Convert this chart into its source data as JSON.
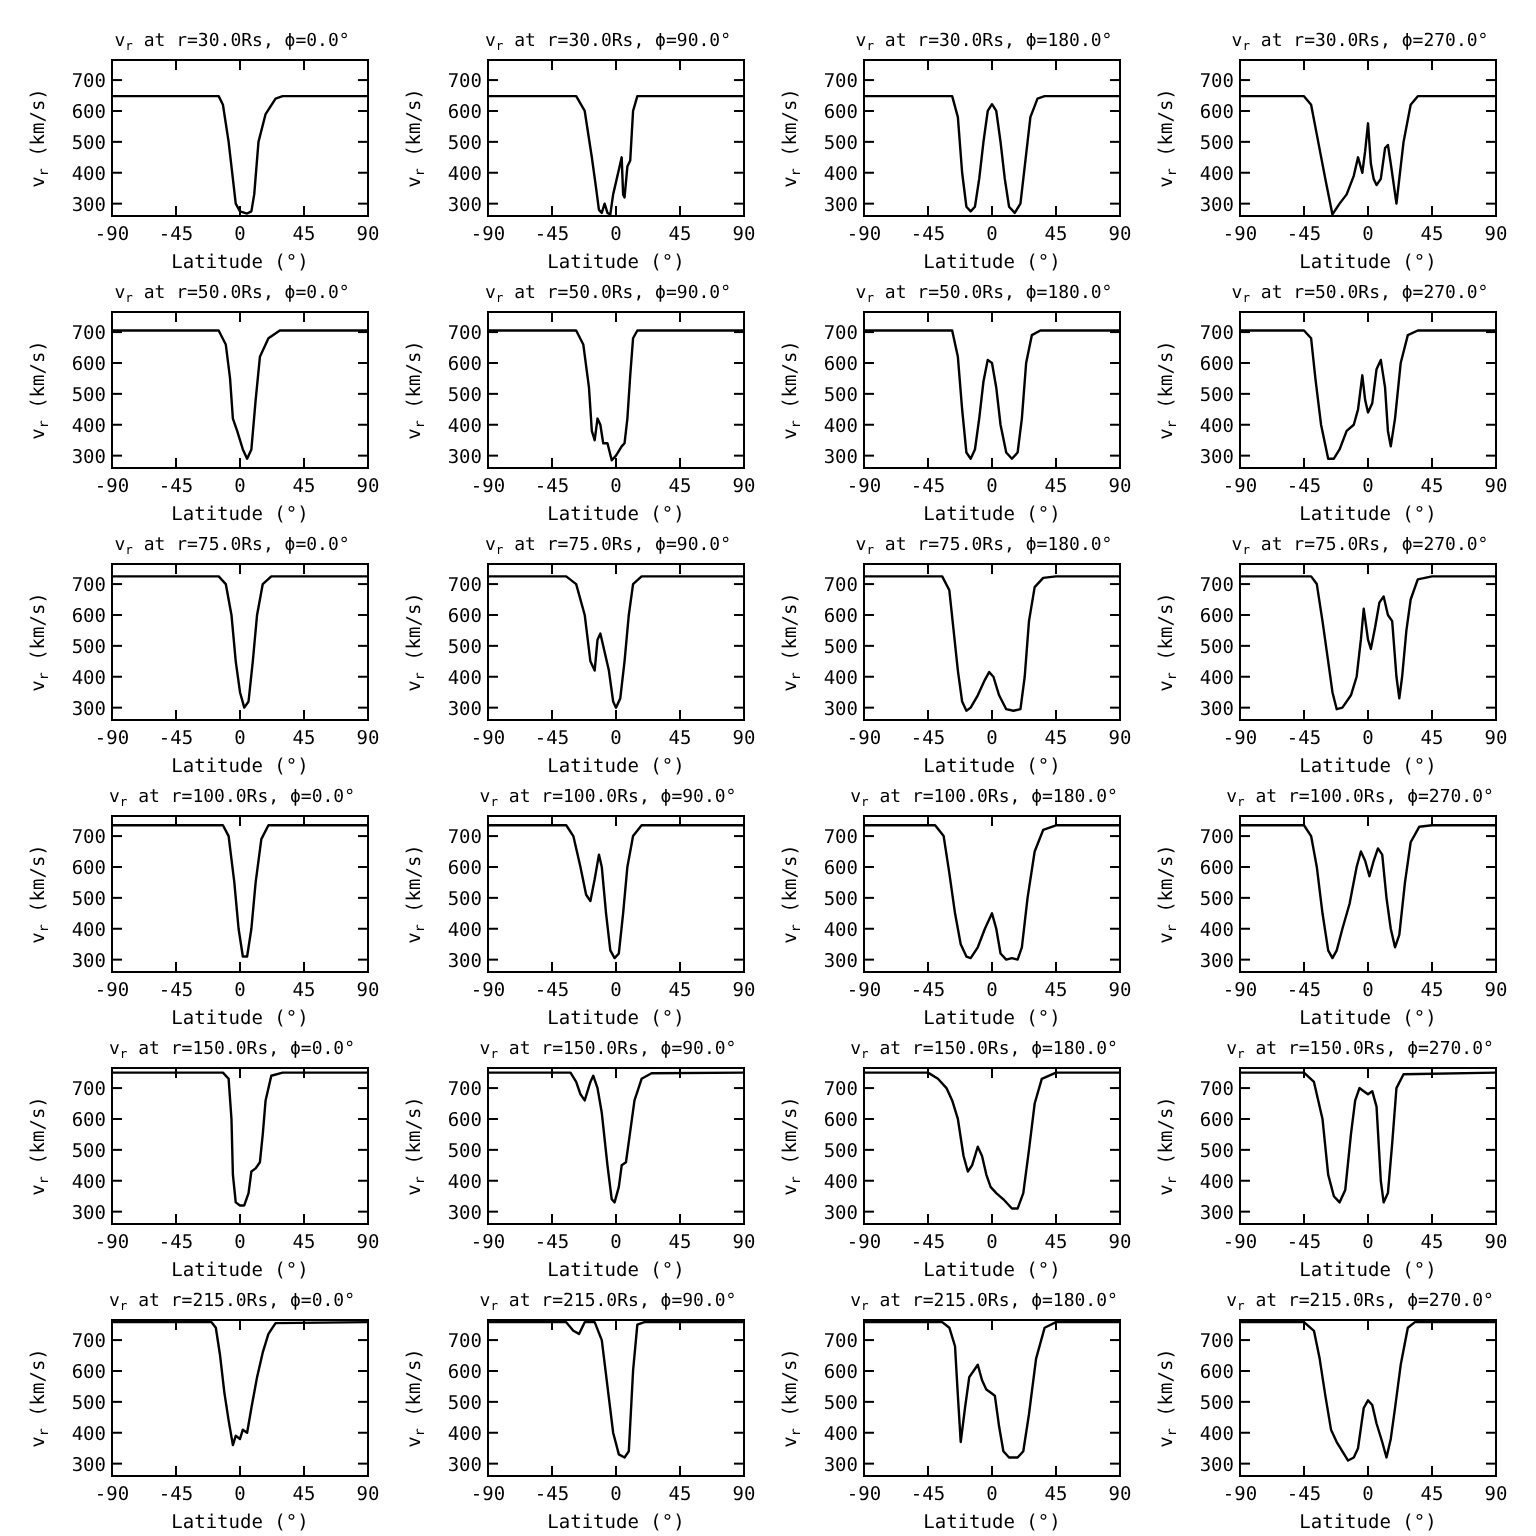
{
  "chart_data": [
    {
      "type": "line",
      "title": "v$_{r}$ at r=30.0Rs, ϕ=0.0°",
      "xlabel": "Latitude (°)",
      "ylabel": "v$_{r}$ (km/s)",
      "color": "#000000",
      "xlim": [
        -90,
        90
      ],
      "ylim": [
        260,
        765
      ],
      "xticks": [
        -90,
        -45,
        0,
        45,
        90
      ],
      "yticks": [
        300,
        400,
        500,
        600,
        700
      ],
      "x": [
        -90,
        -15,
        -12,
        -8,
        -5,
        -3,
        0,
        5,
        8,
        10,
        13,
        18,
        25,
        30,
        90
      ],
      "values": [
        648,
        648,
        620,
        500,
        380,
        300,
        275,
        268,
        275,
        330,
        500,
        590,
        640,
        648,
        648
      ]
    },
    {
      "type": "line",
      "title": "v$_{r}$ at r=30.0Rs, ϕ=90.0°",
      "xlabel": "Latitude (°)",
      "ylabel": "v$_{r}$ (km/s)",
      "color": "#000000",
      "xlim": [
        -90,
        90
      ],
      "ylim": [
        260,
        765
      ],
      "xticks": [
        -90,
        -45,
        0,
        45,
        90
      ],
      "yticks": [
        300,
        400,
        500,
        600,
        700
      ],
      "x": [
        -90,
        -28,
        -22,
        -17,
        -14,
        -12,
        -10,
        -8,
        -6,
        -4,
        -2,
        2,
        4,
        5,
        6,
        8,
        10,
        12,
        15,
        90
      ],
      "values": [
        648,
        648,
        600,
        450,
        350,
        280,
        270,
        300,
        270,
        265,
        330,
        410,
        450,
        330,
        320,
        420,
        440,
        600,
        648,
        648
      ]
    },
    {
      "type": "line",
      "title": "v$_{r}$ at r=30.0Rs, ϕ=180.0°",
      "xlabel": "Latitude (°)",
      "ylabel": "v$_{r}$ (km/s)",
      "color": "#000000",
      "xlim": [
        -90,
        90
      ],
      "ylim": [
        260,
        765
      ],
      "xticks": [
        -90,
        -45,
        0,
        45,
        90
      ],
      "yticks": [
        300,
        400,
        500,
        600,
        700
      ],
      "x": [
        -90,
        -28,
        -24,
        -21,
        -18,
        -15,
        -12,
        -9,
        -6,
        -3,
        0,
        3,
        6,
        9,
        12,
        16,
        20,
        23,
        27,
        32,
        37,
        90
      ],
      "values": [
        648,
        648,
        580,
        400,
        290,
        275,
        290,
        380,
        500,
        600,
        622,
        600,
        500,
        380,
        290,
        270,
        300,
        420,
        580,
        640,
        648,
        648
      ]
    },
    {
      "type": "line",
      "title": "v$_{r}$ at r=30.0Rs, ϕ=270.0°",
      "xlabel": "Latitude (°)",
      "ylabel": "v$_{r}$ (km/s)",
      "color": "#000000",
      "xlim": [
        -90,
        90
      ],
      "ylim": [
        260,
        765
      ],
      "xticks": [
        -90,
        -45,
        0,
        45,
        90
      ],
      "yticks": [
        300,
        400,
        500,
        600,
        700
      ],
      "x": [
        -90,
        -45,
        -40,
        -35,
        -30,
        -25,
        -20,
        -15,
        -10,
        -7,
        -4,
        -2,
        0,
        2,
        4,
        6,
        9,
        12,
        14,
        16,
        20,
        22,
        25,
        30,
        35,
        90
      ],
      "values": [
        648,
        648,
        620,
        500,
        380,
        265,
        300,
        330,
        390,
        450,
        400,
        470,
        560,
        430,
        380,
        360,
        380,
        480,
        490,
        430,
        300,
        380,
        500,
        620,
        648,
        648
      ]
    },
    {
      "type": "line",
      "title": "v$_{r}$ at r=50.0Rs, ϕ=0.0°",
      "xlabel": "Latitude (°)",
      "ylabel": "v$_{r}$ (km/s)",
      "color": "#000000",
      "xlim": [
        -90,
        90
      ],
      "ylim": [
        260,
        765
      ],
      "xticks": [
        -90,
        -45,
        0,
        45,
        90
      ],
      "yticks": [
        300,
        400,
        500,
        600,
        700
      ],
      "x": [
        -90,
        -15,
        -10,
        -7,
        -5,
        -2,
        2,
        5,
        8,
        11,
        14,
        20,
        28,
        90
      ],
      "values": [
        705,
        705,
        660,
        550,
        420,
        380,
        320,
        290,
        320,
        480,
        620,
        680,
        705,
        705
      ]
    },
    {
      "type": "line",
      "title": "v$_{r}$ at r=50.0Rs, ϕ=90.0°",
      "xlabel": "Latitude (°)",
      "ylabel": "v$_{r}$ (km/s)",
      "color": "#000000",
      "xlim": [
        -90,
        90
      ],
      "ylim": [
        260,
        765
      ],
      "xticks": [
        -90,
        -45,
        0,
        45,
        90
      ],
      "yticks": [
        300,
        400,
        500,
        600,
        700
      ],
      "x": [
        -90,
        -28,
        -23,
        -19,
        -17,
        -15,
        -13,
        -11,
        -9,
        -6,
        -3,
        0,
        4,
        6,
        8,
        10,
        12,
        15,
        90
      ],
      "values": [
        705,
        705,
        660,
        520,
        380,
        350,
        420,
        400,
        340,
        340,
        285,
        300,
        330,
        340,
        420,
        560,
        680,
        705,
        705
      ]
    },
    {
      "type": "line",
      "title": "v$_{r}$ at r=50.0Rs, ϕ=180.0°",
      "xlabel": "Latitude (°)",
      "ylabel": "v$_{r}$ (km/s)",
      "color": "#000000",
      "xlim": [
        -90,
        90
      ],
      "ylim": [
        260,
        765
      ],
      "xticks": [
        -90,
        -45,
        0,
        45,
        90
      ],
      "yticks": [
        300,
        400,
        500,
        600,
        700
      ],
      "x": [
        -90,
        -28,
        -24,
        -21,
        -18,
        -15,
        -12,
        -9,
        -6,
        -3,
        0,
        3,
        6,
        10,
        14,
        18,
        21,
        24,
        28,
        34,
        90
      ],
      "values": [
        705,
        705,
        620,
        450,
        310,
        290,
        320,
        420,
        540,
        610,
        600,
        520,
        400,
        310,
        290,
        310,
        420,
        600,
        690,
        705,
        705
      ]
    },
    {
      "type": "line",
      "title": "v$_{r}$ at r=50.0Rs, ϕ=270.0°",
      "xlabel": "Latitude (°)",
      "ylabel": "v$_{r}$ (km/s)",
      "color": "#000000",
      "xlim": [
        -90,
        90
      ],
      "ylim": [
        260,
        765
      ],
      "xticks": [
        -90,
        -45,
        0,
        45,
        90
      ],
      "yticks": [
        300,
        400,
        500,
        600,
        700
      ],
      "x": [
        -90,
        -45,
        -40,
        -37,
        -33,
        -28,
        -24,
        -20,
        -15,
        -10,
        -7,
        -4,
        -2,
        0,
        3,
        6,
        9,
        12,
        14,
        16,
        19,
        23,
        28,
        35,
        90
      ],
      "values": [
        705,
        705,
        680,
        550,
        400,
        290,
        290,
        320,
        380,
        400,
        450,
        560,
        480,
        440,
        470,
        580,
        610,
        520,
        380,
        330,
        420,
        600,
        690,
        705,
        705
      ]
    },
    {
      "type": "line",
      "title": "v$_{r}$ at r=75.0Rs, ϕ=0.0°",
      "xlabel": "Latitude (°)",
      "ylabel": "v$_{r}$ (km/s)",
      "color": "#000000",
      "xlim": [
        -90,
        90
      ],
      "ylim": [
        260,
        765
      ],
      "xticks": [
        -90,
        -45,
        0,
        45,
        90
      ],
      "yticks": [
        300,
        400,
        500,
        600,
        700
      ],
      "x": [
        -90,
        -15,
        -10,
        -6,
        -3,
        0,
        3,
        6,
        9,
        12,
        16,
        22,
        90
      ],
      "values": [
        725,
        725,
        700,
        600,
        450,
        350,
        300,
        320,
        450,
        600,
        700,
        725,
        725
      ]
    },
    {
      "type": "line",
      "title": "v$_{r}$ at r=75.0Rs, ϕ=90.0°",
      "xlabel": "Latitude (°)",
      "ylabel": "v$_{r}$ (km/s)",
      "color": "#000000",
      "xlim": [
        -90,
        90
      ],
      "ylim": [
        260,
        765
      ],
      "xticks": [
        -90,
        -45,
        0,
        45,
        90
      ],
      "yticks": [
        300,
        400,
        500,
        600,
        700
      ],
      "x": [
        -90,
        -35,
        -28,
        -22,
        -18,
        -15,
        -13,
        -11,
        -8,
        -5,
        -2,
        0,
        3,
        6,
        9,
        12,
        18,
        90
      ],
      "values": [
        725,
        725,
        700,
        600,
        450,
        420,
        520,
        540,
        480,
        420,
        320,
        300,
        330,
        450,
        600,
        700,
        725,
        725
      ]
    },
    {
      "type": "line",
      "title": "v$_{r}$ at r=75.0Rs, ϕ=180.0°",
      "xlabel": "Latitude (°)",
      "ylabel": "v$_{r}$ (km/s)",
      "color": "#000000",
      "xlim": [
        -90,
        90
      ],
      "ylim": [
        260,
        765
      ],
      "xticks": [
        -90,
        -45,
        0,
        45,
        90
      ],
      "yticks": [
        300,
        400,
        500,
        600,
        700
      ],
      "x": [
        -90,
        -35,
        -30,
        -27,
        -24,
        -21,
        -18,
        -15,
        -10,
        -5,
        -2,
        1,
        5,
        10,
        15,
        20,
        23,
        26,
        30,
        36,
        45,
        90
      ],
      "values": [
        725,
        725,
        680,
        550,
        420,
        320,
        290,
        300,
        340,
        390,
        415,
        400,
        340,
        295,
        290,
        295,
        400,
        580,
        690,
        720,
        725,
        725
      ]
    },
    {
      "type": "line",
      "title": "v$_{r}$ at r=75.0Rs, ϕ=270.0°",
      "xlabel": "Latitude (°)",
      "ylabel": "v$_{r}$ (km/s)",
      "color": "#000000",
      "xlim": [
        -90,
        90
      ],
      "ylim": [
        260,
        765
      ],
      "xticks": [
        -90,
        -45,
        0,
        45,
        90
      ],
      "yticks": [
        300,
        400,
        500,
        600,
        700
      ],
      "x": [
        -90,
        -40,
        -36,
        -32,
        -28,
        -25,
        -22,
        -18,
        -12,
        -8,
        -5,
        -3,
        0,
        2,
        5,
        8,
        11,
        14,
        17,
        20,
        22,
        24,
        27,
        30,
        35,
        45,
        90
      ],
      "values": [
        725,
        725,
        700,
        580,
        450,
        350,
        295,
        300,
        340,
        400,
        520,
        620,
        520,
        490,
        560,
        640,
        660,
        600,
        580,
        400,
        330,
        400,
        550,
        650,
        715,
        725,
        725
      ]
    },
    {
      "type": "line",
      "title": "v$_{r}$ at r=100.0Rs, ϕ=0.0°",
      "xlabel": "Latitude (°)",
      "ylabel": "v$_{r}$ (km/s)",
      "color": "#000000",
      "xlim": [
        -90,
        90
      ],
      "ylim": [
        260,
        765
      ],
      "xticks": [
        -90,
        -45,
        0,
        45,
        90
      ],
      "yticks": [
        300,
        400,
        500,
        600,
        700
      ],
      "x": [
        -90,
        -12,
        -8,
        -4,
        -1,
        2,
        5,
        8,
        11,
        15,
        20,
        90
      ],
      "values": [
        735,
        735,
        700,
        550,
        400,
        310,
        310,
        400,
        550,
        690,
        735,
        735
      ]
    },
    {
      "type": "line",
      "title": "v$_{r}$ at r=100.0Rs, ϕ=90.0°",
      "xlabel": "Latitude (°)",
      "ylabel": "v$_{r}$ (km/s)",
      "color": "#000000",
      "xlim": [
        -90,
        90
      ],
      "ylim": [
        260,
        765
      ],
      "xticks": [
        -90,
        -45,
        0,
        45,
        90
      ],
      "yticks": [
        300,
        400,
        500,
        600,
        700
      ],
      "x": [
        -90,
        -35,
        -30,
        -25,
        -21,
        -18,
        -15,
        -12,
        -10,
        -7,
        -4,
        -1,
        2,
        5,
        8,
        12,
        18,
        90
      ],
      "values": [
        735,
        735,
        700,
        600,
        510,
        490,
        560,
        640,
        600,
        450,
        330,
        305,
        320,
        450,
        600,
        700,
        735,
        735
      ]
    },
    {
      "type": "line",
      "title": "v$_{r}$ at r=100.0Rs, ϕ=180.0°",
      "xlabel": "Latitude (°)",
      "ylabel": "v$_{r}$ (km/s)",
      "color": "#000000",
      "xlim": [
        -90,
        90
      ],
      "ylim": [
        260,
        765
      ],
      "xticks": [
        -90,
        -45,
        0,
        45,
        90
      ],
      "yticks": [
        300,
        400,
        500,
        600,
        700
      ],
      "x": [
        -90,
        -40,
        -34,
        -30,
        -26,
        -22,
        -18,
        -15,
        -10,
        -5,
        0,
        3,
        6,
        10,
        14,
        18,
        21,
        25,
        30,
        36,
        45,
        90
      ],
      "values": [
        735,
        735,
        700,
        580,
        450,
        350,
        310,
        305,
        340,
        400,
        450,
        400,
        320,
        300,
        305,
        300,
        340,
        500,
        650,
        720,
        735,
        735
      ]
    },
    {
      "type": "line",
      "title": "v$_{r}$ at r=100.0Rs, ϕ=270.0°",
      "xlabel": "Latitude (°)",
      "ylabel": "v$_{r}$ (km/s)",
      "color": "#000000",
      "xlim": [
        -90,
        90
      ],
      "ylim": [
        260,
        765
      ],
      "xticks": [
        -90,
        -45,
        0,
        45,
        90
      ],
      "yticks": [
        300,
        400,
        500,
        600,
        700
      ],
      "x": [
        -90,
        -45,
        -40,
        -36,
        -32,
        -28,
        -25,
        -22,
        -18,
        -13,
        -8,
        -5,
        -2,
        1,
        4,
        7,
        10,
        13,
        16,
        19,
        22,
        26,
        30,
        36,
        45,
        90
      ],
      "values": [
        735,
        735,
        700,
        600,
        450,
        330,
        305,
        330,
        400,
        480,
        600,
        650,
        620,
        570,
        620,
        660,
        640,
        500,
        400,
        340,
        380,
        550,
        680,
        730,
        735,
        735
      ]
    },
    {
      "type": "line",
      "title": "v$_{r}$ at r=150.0Rs, ϕ=0.0°",
      "xlabel": "Latitude (°)",
      "ylabel": "v$_{r}$ (km/s)",
      "color": "#000000",
      "xlim": [
        -90,
        90
      ],
      "ylim": [
        260,
        765
      ],
      "xticks": [
        -90,
        -45,
        0,
        45,
        90
      ],
      "yticks": [
        300,
        400,
        500,
        600,
        700
      ],
      "x": [
        -90,
        -12,
        -8,
        -6,
        -5,
        -3,
        0,
        3,
        6,
        8,
        11,
        14,
        16,
        18,
        22,
        30,
        90
      ],
      "values": [
        750,
        750,
        730,
        600,
        420,
        330,
        320,
        320,
        360,
        430,
        440,
        460,
        550,
        660,
        740,
        750,
        750
      ]
    },
    {
      "type": "line",
      "title": "v$_{r}$ at r=150.0Rs, ϕ=90.0°",
      "xlabel": "Latitude (°)",
      "ylabel": "v$_{r}$ (km/s)",
      "color": "#000000",
      "xlim": [
        -90,
        90
      ],
      "ylim": [
        260,
        765
      ],
      "xticks": [
        -90,
        -45,
        0,
        45,
        90
      ],
      "yticks": [
        300,
        400,
        500,
        600,
        700
      ],
      "x": [
        -90,
        -32,
        -28,
        -25,
        -22,
        -18,
        -16,
        -13,
        -10,
        -6,
        -3,
        -1,
        2,
        4,
        7,
        10,
        13,
        18,
        25,
        90
      ],
      "values": [
        750,
        750,
        720,
        680,
        660,
        720,
        740,
        700,
        620,
        450,
        340,
        330,
        380,
        450,
        460,
        560,
        660,
        730,
        748,
        750
      ]
    },
    {
      "type": "line",
      "title": "v$_{r}$ at r=150.0Rs, ϕ=180.0°",
      "xlabel": "Latitude (°)",
      "ylabel": "v$_{r}$ (km/s)",
      "color": "#000000",
      "xlim": [
        -90,
        90
      ],
      "ylim": [
        260,
        765
      ],
      "xticks": [
        -90,
        -45,
        0,
        45,
        90
      ],
      "yticks": [
        300,
        400,
        500,
        600,
        700
      ],
      "x": [
        -90,
        -45,
        -38,
        -32,
        -28,
        -24,
        -20,
        -17,
        -14,
        -10,
        -7,
        -4,
        -1,
        3,
        8,
        14,
        18,
        22,
        26,
        30,
        35,
        45,
        90
      ],
      "values": [
        750,
        750,
        730,
        700,
        660,
        600,
        480,
        430,
        450,
        510,
        480,
        420,
        380,
        360,
        340,
        310,
        310,
        360,
        500,
        650,
        730,
        750,
        750
      ]
    },
    {
      "type": "line",
      "title": "v$_{r}$ at r=150.0Rs, ϕ=270.0°",
      "xlabel": "Latitude (°)",
      "ylabel": "v$_{r}$ (km/s)",
      "color": "#000000",
      "xlim": [
        -90,
        90
      ],
      "ylim": [
        260,
        765
      ],
      "xticks": [
        -90,
        -45,
        0,
        45,
        90
      ],
      "yticks": [
        300,
        400,
        500,
        600,
        700
      ],
      "x": [
        -90,
        -45,
        -38,
        -32,
        -28,
        -24,
        -20,
        -16,
        -12,
        -9,
        -6,
        -3,
        0,
        3,
        6,
        9,
        11,
        14,
        17,
        20,
        25,
        90
      ],
      "values": [
        750,
        750,
        720,
        600,
        420,
        350,
        330,
        370,
        550,
        660,
        700,
        690,
        680,
        690,
        640,
        400,
        330,
        360,
        520,
        700,
        745,
        750
      ]
    },
    {
      "type": "line",
      "title": "v$_{r}$ at r=215.0Rs, ϕ=0.0°",
      "xlabel": "Latitude (°)",
      "ylabel": "v$_{r}$ (km/s)",
      "color": "#000000",
      "xlim": [
        -90,
        90
      ],
      "ylim": [
        260,
        765
      ],
      "xticks": [
        -90,
        -45,
        0,
        45,
        90
      ],
      "yticks": [
        300,
        400,
        500,
        600,
        700
      ],
      "x": [
        -90,
        -20,
        -17,
        -14,
        -11,
        -8,
        -5,
        -3,
        0,
        2,
        5,
        8,
        12,
        16,
        20,
        25,
        90
      ],
      "values": [
        758,
        758,
        740,
        650,
        530,
        440,
        360,
        390,
        380,
        410,
        400,
        480,
        580,
        660,
        720,
        755,
        758
      ]
    },
    {
      "type": "line",
      "title": "v$_{r}$ at r=215.0Rs, ϕ=90.0°",
      "xlabel": "Latitude (°)",
      "ylabel": "v$_{r}$ (km/s)",
      "color": "#000000",
      "xlim": [
        -90,
        90
      ],
      "ylim": [
        260,
        765
      ],
      "xticks": [
        -90,
        -45,
        0,
        45,
        90
      ],
      "yticks": [
        300,
        400,
        500,
        600,
        700
      ],
      "x": [
        -90,
        -35,
        -30,
        -26,
        -22,
        -15,
        -10,
        -6,
        -2,
        2,
        6,
        9,
        12,
        15,
        20,
        90
      ],
      "values": [
        758,
        758,
        730,
        720,
        758,
        758,
        700,
        550,
        400,
        330,
        320,
        340,
        600,
        750,
        758,
        758
      ]
    },
    {
      "type": "line",
      "title": "v$_{r}$ at r=215.0Rs, ϕ=180.0°",
      "xlabel": "Latitude (°)",
      "ylabel": "v$_{r}$ (km/s)",
      "color": "#000000",
      "xlim": [
        -90,
        90
      ],
      "ylim": [
        260,
        765
      ],
      "xticks": [
        -90,
        -45,
        0,
        45,
        90
      ],
      "yticks": [
        300,
        400,
        500,
        600,
        700
      ],
      "x": [
        -90,
        -35,
        -30,
        -26,
        -24,
        -22,
        -19,
        -16,
        -13,
        -10,
        -7,
        -4,
        -1,
        2,
        5,
        8,
        12,
        18,
        22,
        26,
        31,
        37,
        45,
        90
      ],
      "values": [
        758,
        758,
        740,
        680,
        520,
        370,
        480,
        580,
        600,
        620,
        570,
        540,
        530,
        520,
        420,
        340,
        320,
        320,
        340,
        460,
        640,
        740,
        758,
        758
      ]
    },
    {
      "type": "line",
      "title": "v$_{r}$ at r=215.0Rs, ϕ=270.0°",
      "xlabel": "Latitude (°)",
      "ylabel": "v$_{r}$ (km/s)",
      "color": "#000000",
      "xlim": [
        -90,
        90
      ],
      "ylim": [
        260,
        765
      ],
      "xticks": [
        -90,
        -45,
        0,
        45,
        90
      ],
      "yticks": [
        300,
        400,
        500,
        600,
        700
      ],
      "x": [
        -90,
        -45,
        -38,
        -34,
        -30,
        -26,
        -22,
        -18,
        -14,
        -10,
        -7,
        -3,
        0,
        3,
        6,
        10,
        13,
        16,
        19,
        23,
        28,
        33,
        90
      ],
      "values": [
        758,
        758,
        730,
        640,
        520,
        410,
        370,
        340,
        310,
        320,
        350,
        480,
        505,
        490,
        430,
        370,
        320,
        380,
        480,
        620,
        740,
        758,
        758
      ]
    }
  ]
}
